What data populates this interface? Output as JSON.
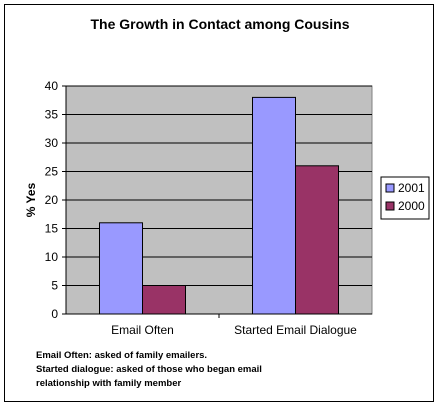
{
  "chart_data": {
    "type": "bar",
    "title": "The Growth in Contact among Cousins",
    "xlabel": "",
    "ylabel": "% Yes",
    "ylim": [
      0,
      40
    ],
    "yticks": [
      0,
      5,
      10,
      15,
      20,
      25,
      30,
      35,
      40
    ],
    "categories": [
      "Email Often",
      "Started Email Dialogue"
    ],
    "series": [
      {
        "name": "2001",
        "values": [
          16,
          38
        ],
        "color": "#9999ff"
      },
      {
        "name": "2000",
        "values": [
          5,
          26
        ],
        "color": "#993366"
      }
    ],
    "grid": true,
    "legend_position": "right",
    "plot_background": "#c0c0c0"
  },
  "notes": [
    "Email Often: asked of family emailers.",
    "Started dialogue: asked of those who began email",
    "relationship with family member"
  ]
}
